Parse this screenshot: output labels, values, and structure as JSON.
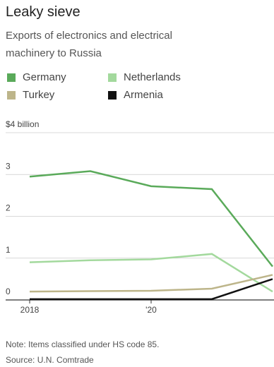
{
  "chart_data": {
    "type": "line",
    "title": "Leaky sieve",
    "subtitle": "Exports of electronics and electrical machinery to Russia",
    "x": [
      2018,
      2019,
      2020,
      2021,
      2022
    ],
    "series": [
      {
        "name": "Germany",
        "color": "#5aaa5a",
        "values": [
          2.95,
          3.08,
          2.72,
          2.65,
          0.8
        ]
      },
      {
        "name": "Netherlands",
        "color": "#a3d99d",
        "values": [
          0.9,
          0.95,
          0.97,
          1.1,
          0.2
        ]
      },
      {
        "name": "Turkey",
        "color": "#bdb58a",
        "values": [
          0.2,
          0.21,
          0.22,
          0.27,
          0.6
        ]
      },
      {
        "name": "Armenia",
        "color": "#111111",
        "values": [
          0.02,
          0.02,
          0.02,
          0.02,
          0.5
        ]
      }
    ],
    "xlim": [
      2018,
      2022
    ],
    "xticks": [
      2018,
      {
        "value": 2020,
        "label": "'20"
      }
    ],
    "ylim": [
      0,
      4
    ],
    "yticks": [
      0,
      1,
      2,
      3,
      {
        "value": 4,
        "label": "$4 billion"
      }
    ],
    "grid": true,
    "note": "Note: Items classified under HS code 85.",
    "source": "Source: U.N. Comtrade"
  }
}
